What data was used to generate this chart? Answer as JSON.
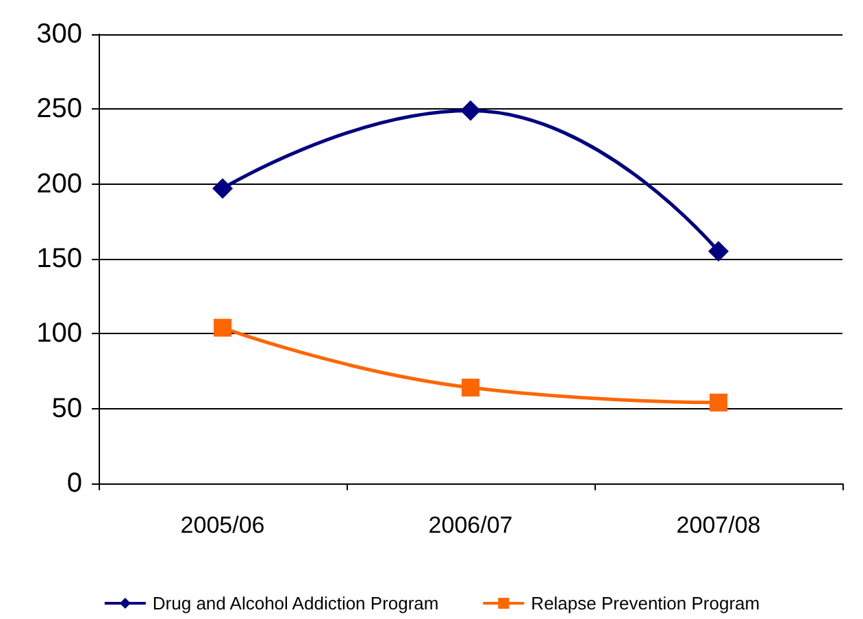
{
  "chart_data": {
    "type": "line",
    "categories": [
      "2005/06",
      "2006/07",
      "2007/08"
    ],
    "series": [
      {
        "name": "Drug and Alcohol Addiction Program",
        "color": "#000080",
        "marker": "diamond",
        "values": [
          197,
          249,
          155
        ]
      },
      {
        "name": "Relapse Prevention Program",
        "color": "#ff6600",
        "marker": "square",
        "values": [
          104,
          64,
          54
        ]
      }
    ],
    "ylim": [
      0,
      300
    ],
    "yticks": [
      0,
      50,
      100,
      150,
      200,
      250,
      300
    ],
    "grid": "y",
    "legend": "bottom"
  }
}
